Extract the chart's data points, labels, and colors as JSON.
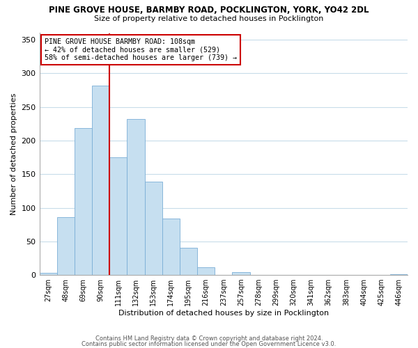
{
  "title_line1": "PINE GROVE HOUSE, BARMBY ROAD, POCKLINGTON, YORK, YO42 2DL",
  "title_line2": "Size of property relative to detached houses in Pocklington",
  "xlabel": "Distribution of detached houses by size in Pocklington",
  "ylabel": "Number of detached properties",
  "bin_labels": [
    "27sqm",
    "48sqm",
    "69sqm",
    "90sqm",
    "111sqm",
    "132sqm",
    "153sqm",
    "174sqm",
    "195sqm",
    "216sqm",
    "237sqm",
    "257sqm",
    "278sqm",
    "299sqm",
    "320sqm",
    "341sqm",
    "362sqm",
    "383sqm",
    "404sqm",
    "425sqm",
    "446sqm"
  ],
  "bar_heights": [
    3,
    86,
    219,
    282,
    175,
    232,
    139,
    84,
    40,
    11,
    0,
    4,
    0,
    0,
    0,
    0,
    0,
    0,
    0,
    0,
    1
  ],
  "bar_color": "#c6dff0",
  "bar_edge_color": "#7aaed6",
  "vline_x_index": 4,
  "vline_color": "#cc0000",
  "annotation_title": "PINE GROVE HOUSE BARMBY ROAD: 108sqm",
  "annotation_line2": "← 42% of detached houses are smaller (529)",
  "annotation_line3": "58% of semi-detached houses are larger (739) →",
  "annotation_box_color": "#ffffff",
  "annotation_border_color": "#cc0000",
  "ylim": [
    0,
    360
  ],
  "yticks": [
    0,
    50,
    100,
    150,
    200,
    250,
    300,
    350
  ],
  "footer_line1": "Contains HM Land Registry data © Crown copyright and database right 2024.",
  "footer_line2": "Contains public sector information licensed under the Open Government Licence v3.0.",
  "bg_color": "#ffffff",
  "grid_color": "#c8dcea"
}
